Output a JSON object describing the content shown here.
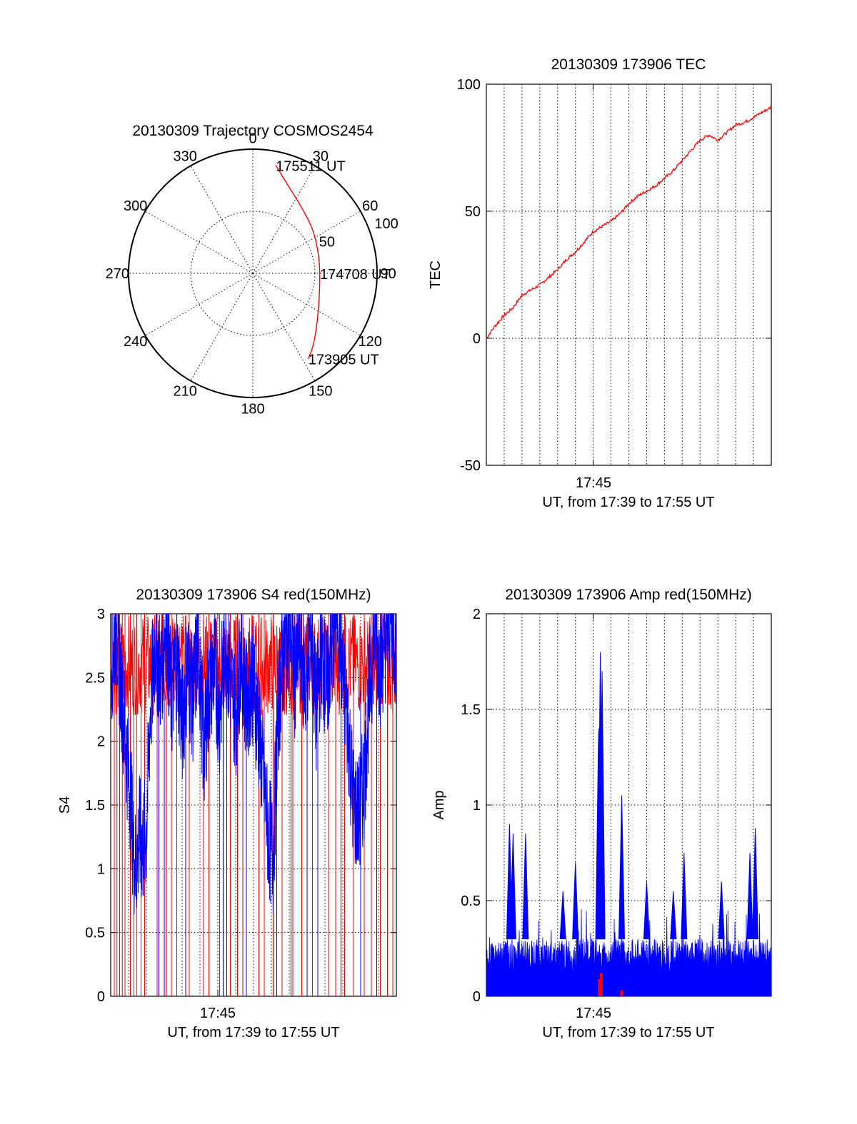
{
  "chart_data": [
    {
      "type": "polar",
      "title": "20130309 Trajectory COSMOS2454",
      "azimuth_labels": [
        "0",
        "30",
        "60",
        "90",
        "120",
        "150",
        "180",
        "210",
        "240",
        "270",
        "300",
        "330"
      ],
      "azimuth_values": [
        0,
        30,
        60,
        90,
        120,
        150,
        180,
        210,
        240,
        270,
        300,
        330
      ],
      "radial_labels": [
        "50",
        "100"
      ],
      "radial_values": [
        50,
        100
      ],
      "radial_max": 100,
      "track": {
        "color": "#ff0000",
        "points": [
          {
            "az": 12,
            "r": 89
          },
          {
            "az": 20,
            "r": 78
          },
          {
            "az": 35,
            "r": 67
          },
          {
            "az": 55,
            "r": 60
          },
          {
            "az": 75,
            "r": 55
          },
          {
            "az": 90,
            "r": 54
          },
          {
            "az": 110,
            "r": 57
          },
          {
            "az": 127,
            "r": 65
          },
          {
            "az": 140,
            "r": 76
          },
          {
            "az": 147,
            "r": 82
          }
        ]
      },
      "annotations": [
        {
          "text": "175511 UT",
          "az": 12,
          "r": 89
        },
        {
          "text": "174708 UT",
          "az": 90,
          "r": 54
        },
        {
          "text": "173905 UT",
          "az": 147,
          "r": 82
        }
      ]
    },
    {
      "type": "line",
      "title": "20130309 173906 TEC",
      "ylabel": "TEC",
      "xlabel": "UT, from 17:39 to 17:55 UT",
      "xtick_label": "17:45",
      "xtick_minute": 6,
      "x_range_minutes": [
        0,
        16
      ],
      "ylim": [
        -50,
        100
      ],
      "yticks": [
        -50,
        0,
        50,
        100
      ],
      "color": "#ff0000",
      "series": [
        {
          "name": "TEC",
          "x": [
            0,
            0.5,
            1,
            1.5,
            2,
            2.5,
            3,
            3.5,
            4,
            4.5,
            5,
            5.5,
            6,
            6.5,
            7,
            7.5,
            8,
            8.5,
            9,
            9.5,
            10,
            10.5,
            11,
            11.5,
            12,
            12.5,
            13,
            13.5,
            14,
            14.5,
            15,
            15.5,
            16
          ],
          "y": [
            0,
            5,
            9,
            12,
            17,
            19,
            21,
            24,
            27,
            31,
            34,
            38,
            42,
            44,
            46,
            49,
            53,
            56,
            58,
            60,
            63,
            66,
            70,
            74,
            78,
            80,
            78,
            81,
            84,
            85,
            87,
            89,
            91
          ]
        }
      ]
    },
    {
      "type": "line",
      "title": "20130309 173906 S4 red(150MHz)",
      "ylabel": "S4",
      "xlabel": "UT, from 17:39 to 17:55 UT",
      "xtick_label": "17:45",
      "xtick_minute": 6,
      "x_range_minutes": [
        0,
        16
      ],
      "ylim": [
        0,
        3
      ],
      "ytick_labels": [
        "0",
        "0.5",
        "1",
        "1.5",
        "2",
        "2.5",
        "3"
      ],
      "yticks": [
        0,
        0.5,
        1,
        1.5,
        2,
        2.5,
        3
      ],
      "series": [
        {
          "name": "red (150MHz)",
          "color": "#ff0000",
          "spike_minutes": [
            0.2,
            0.35,
            0.5,
            0.65,
            0.8,
            1.1,
            1.3,
            1.45,
            1.7,
            1.9,
            2.6,
            3.1,
            3.4,
            3.7,
            4.4,
            5.2,
            5.5,
            6.1,
            6.7,
            7.1,
            7.4,
            8.3,
            8.6,
            9.1,
            9.6,
            10.2,
            10.7,
            11.3,
            12.2,
            12.6,
            13.1,
            13.6,
            14.2,
            14.6,
            15.1,
            15.5,
            15.8
          ]
        },
        {
          "name": "blue",
          "color": "#0000ff",
          "trace": [
            [
              0,
              2.4
            ],
            [
              0.3,
              2.7
            ],
            [
              0.6,
              2.2
            ],
            [
              0.9,
              1.7
            ],
            [
              1.1,
              1.4
            ],
            [
              1.3,
              0.9
            ],
            [
              1.4,
              0.8
            ],
            [
              1.6,
              1.05
            ],
            [
              1.8,
              0.95
            ],
            [
              2.0,
              1.1
            ],
            [
              2.2,
              2.0
            ],
            [
              2.5,
              2.6
            ],
            [
              2.8,
              2.3
            ],
            [
              3.1,
              2.8
            ],
            [
              3.4,
              2.1
            ],
            [
              3.7,
              2.5
            ],
            [
              4.0,
              1.9
            ],
            [
              4.3,
              2.4
            ],
            [
              4.6,
              2.1
            ],
            [
              4.9,
              2.6
            ],
            [
              5.2,
              1.7
            ],
            [
              5.5,
              2.2
            ],
            [
              5.8,
              2.4
            ],
            [
              6.1,
              2.0
            ],
            [
              6.4,
              2.6
            ],
            [
              6.7,
              2.3
            ],
            [
              7.0,
              2.0
            ],
            [
              7.3,
              2.5
            ],
            [
              7.6,
              2.1
            ],
            [
              7.9,
              2.3
            ],
            [
              8.2,
              2.0
            ],
            [
              8.5,
              1.6
            ],
            [
              8.8,
              1.1
            ],
            [
              9.1,
              0.9
            ],
            [
              9.4,
              2.1
            ],
            [
              9.7,
              2.5
            ],
            [
              10.0,
              2.8
            ],
            [
              10.3,
              2.3
            ],
            [
              10.6,
              2.6
            ],
            [
              10.9,
              2.2
            ],
            [
              11.2,
              2.7
            ],
            [
              11.5,
              2.0
            ],
            [
              11.8,
              2.5
            ],
            [
              12.1,
              2.2
            ],
            [
              12.4,
              2.6
            ],
            [
              12.7,
              2.9
            ],
            [
              13.0,
              2.3
            ],
            [
              13.3,
              1.9
            ],
            [
              13.6,
              1.3
            ],
            [
              13.9,
              1.2
            ],
            [
              14.2,
              1.5
            ],
            [
              14.5,
              2.2
            ],
            [
              14.8,
              2.7
            ],
            [
              15.1,
              2.4
            ],
            [
              15.4,
              2.6
            ],
            [
              15.7,
              2.8
            ],
            [
              16,
              2.5
            ]
          ],
          "spike_minutes": [
            2.7,
            3.0,
            4.2,
            6.3,
            6.5,
            7.6,
            9.3,
            10.1,
            11.0,
            11.6,
            12.9,
            14.0,
            14.9
          ]
        }
      ]
    },
    {
      "type": "bar",
      "title": "20130309 173906 Amp red(150MHz)",
      "ylabel": "Amp",
      "xlabel": "UT, from 17:39 to 17:55 UT",
      "xtick_label": "17:45",
      "xtick_minute": 6,
      "x_range_minutes": [
        0,
        16
      ],
      "ylim": [
        0,
        2
      ],
      "ytick_labels": [
        "0",
        "0.5",
        "1",
        "1.5",
        "2"
      ],
      "yticks": [
        0,
        0.5,
        1,
        1.5,
        2
      ],
      "series": [
        {
          "name": "blue",
          "color": "#0000ff",
          "baseline_max": 0.3,
          "peaks": [
            {
              "minute": 1.3,
              "value": 0.9
            },
            {
              "minute": 1.5,
              "value": 0.85
            },
            {
              "minute": 2.2,
              "value": 0.85
            },
            {
              "minute": 4.3,
              "value": 0.55
            },
            {
              "minute": 5.0,
              "value": 0.7
            },
            {
              "minute": 6.3,
              "value": 1.4
            },
            {
              "minute": 6.4,
              "value": 1.8
            },
            {
              "minute": 6.5,
              "value": 1.7
            },
            {
              "minute": 7.6,
              "value": 1.05
            },
            {
              "minute": 9.0,
              "value": 0.6
            },
            {
              "minute": 10.5,
              "value": 0.55
            },
            {
              "minute": 11.1,
              "value": 0.75
            },
            {
              "minute": 13.2,
              "value": 0.6
            },
            {
              "minute": 14.8,
              "value": 0.75
            },
            {
              "minute": 15.1,
              "value": 0.88
            }
          ]
        },
        {
          "name": "red",
          "color": "#ff0000",
          "peaks": [
            {
              "minute": 6.35,
              "value": 0.09
            },
            {
              "minute": 6.45,
              "value": 0.12
            },
            {
              "minute": 7.6,
              "value": 0.03
            }
          ]
        }
      ]
    }
  ]
}
